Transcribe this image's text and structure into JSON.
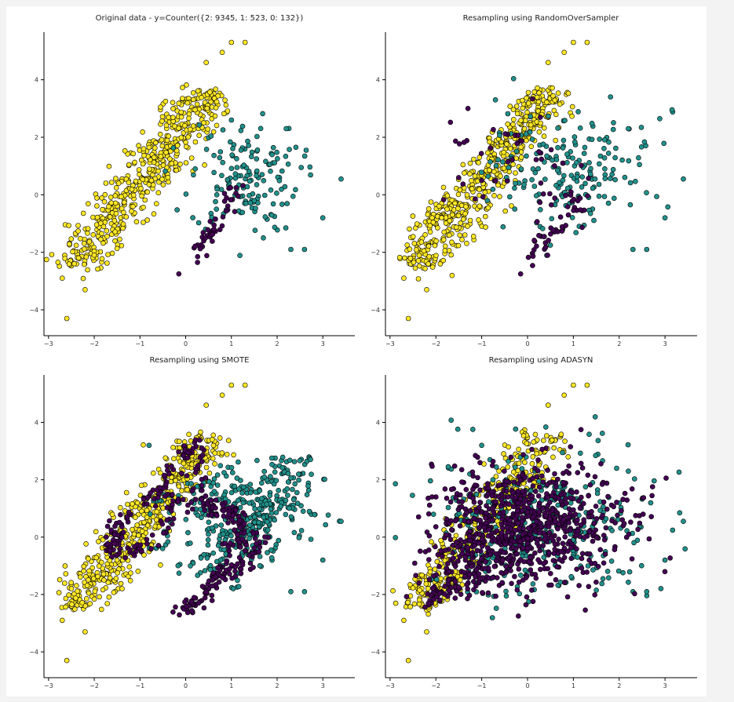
{
  "chart_data": [
    {
      "type": "scatter",
      "title": "Original data - y=Counter({2: 9345, 1: 523, 0: 132})",
      "xlim": [
        -3.1,
        3.7
      ],
      "ylim": [
        -4.9,
        5.6
      ],
      "xticks": [
        -3,
        -2,
        -1,
        0,
        1,
        2,
        3
      ],
      "yticks": [
        -4,
        -2,
        0,
        2,
        4
      ],
      "grid": false,
      "series": [
        {
          "class": 2,
          "color": "#fde725",
          "method": "band",
          "n": 520,
          "from": [
            -2.45,
            -2.5
          ],
          "to": [
            0.55,
            3.6
          ],
          "spread": 0.55,
          "extras": [
            [
              -2.6,
              -4.3
            ],
            [
              0.45,
              4.6
            ],
            [
              0.8,
              4.95
            ],
            [
              1.0,
              5.3
            ],
            [
              1.3,
              5.3
            ],
            [
              -0.55,
              3.05
            ],
            [
              -2.7,
              -2.9
            ],
            [
              -2.2,
              -3.3
            ]
          ]
        },
        {
          "class": 1,
          "color": "#21918c",
          "method": "blob",
          "n": 150,
          "center": [
            1.3,
            0.6
          ],
          "spread": [
            0.6,
            0.95
          ],
          "extras": [
            [
              3.4,
              0.55
            ],
            [
              2.6,
              -1.9
            ],
            [
              2.3,
              -1.9
            ],
            [
              3.0,
              -0.8
            ],
            [
              1.7,
              -1.5
            ],
            [
              2.2,
              2.3
            ],
            [
              1.0,
              2.6
            ]
          ]
        },
        {
          "class": 0,
          "color": "#440154",
          "method": "band",
          "n": 45,
          "from": [
            0.2,
            -2.2
          ],
          "to": [
            1.15,
            0.3
          ],
          "spread": 0.18,
          "extras": [
            [
              -0.15,
              -2.75
            ]
          ]
        }
      ]
    },
    {
      "type": "scatter",
      "title": "Resampling using RandomOverSampler",
      "xlim": [
        -3.1,
        3.7
      ],
      "ylim": [
        -4.9,
        5.6
      ],
      "xticks": [
        -3,
        -2,
        -1,
        0,
        1,
        2,
        3
      ],
      "yticks": [
        -4,
        -2,
        0,
        2,
        4
      ],
      "grid": false,
      "series": [
        {
          "class": 2,
          "color": "#fde725",
          "method": "band",
          "n": 520,
          "from": [
            -2.45,
            -2.5
          ],
          "to": [
            0.55,
            3.6
          ],
          "spread": 0.55,
          "extras": [
            [
              -2.6,
              -4.3
            ],
            [
              0.45,
              4.6
            ],
            [
              0.8,
              4.95
            ],
            [
              1.0,
              5.3
            ],
            [
              1.3,
              5.3
            ],
            [
              -2.7,
              -2.9
            ],
            [
              -2.2,
              -3.3
            ]
          ]
        },
        {
          "class": 1,
          "color": "#21918c",
          "method": "blob",
          "n": 190,
          "center": [
            0.9,
            0.9
          ],
          "spread": [
            0.9,
            1.0
          ],
          "extras": [
            [
              3.4,
              0.55
            ],
            [
              2.6,
              -1.9
            ],
            [
              2.3,
              -1.9
            ],
            [
              3.0,
              -0.8
            ],
            [
              2.2,
              2.3
            ],
            [
              -0.7,
              3.3
            ]
          ]
        },
        {
          "class": 0,
          "color": "#440154",
          "method": "mixed",
          "n": 90,
          "parts": [
            {
              "from": [
                0.2,
                -2.2
              ],
              "to": [
                1.15,
                0.3
              ],
              "spread": 0.18,
              "frac": 0.55
            },
            {
              "center": [
                -0.5,
                1.2
              ],
              "spread": [
                0.7,
                0.9
              ],
              "frac": 0.45
            }
          ],
          "extras": [
            [
              -0.15,
              -2.75
            ],
            [
              -1.3,
              3.0
            ]
          ]
        }
      ]
    },
    {
      "type": "scatter",
      "title": "Resampling using SMOTE",
      "xlim": [
        -3.1,
        3.7
      ],
      "ylim": [
        -4.9,
        5.6
      ],
      "xticks": [
        -3,
        -2,
        -1,
        0,
        1,
        2,
        3
      ],
      "yticks": [
        -4,
        -2,
        0,
        2,
        4
      ],
      "grid": false,
      "series": [
        {
          "class": 2,
          "color": "#fde725",
          "method": "band",
          "n": 470,
          "from": [
            -2.45,
            -2.5
          ],
          "to": [
            0.55,
            3.6
          ],
          "spread": 0.55,
          "extras": [
            [
              -2.6,
              -4.3
            ],
            [
              0.45,
              4.6
            ],
            [
              0.8,
              4.95
            ],
            [
              1.0,
              5.3
            ],
            [
              1.3,
              5.3
            ],
            [
              -2.7,
              -2.9
            ],
            [
              -2.2,
              -3.3
            ]
          ]
        },
        {
          "class": 1,
          "color": "#21918c",
          "method": "loops",
          "n": 420,
          "center": [
            1.1,
            0.6
          ],
          "spread": [
            1.3,
            1.2
          ],
          "extras": [
            [
              3.4,
              0.55
            ],
            [
              2.6,
              -1.9
            ],
            [
              2.3,
              -1.9
            ],
            [
              3.0,
              -0.8
            ],
            [
              -0.8,
              3.2
            ]
          ]
        },
        {
          "class": 0,
          "color": "#440154",
          "method": "path",
          "n": 360,
          "path": [
            [
              -0.15,
              -2.7
            ],
            [
              0.2,
              -2.3
            ],
            [
              0.6,
              -1.5
            ],
            [
              1.0,
              -0.7
            ],
            [
              1.3,
              0.2
            ],
            [
              1.1,
              0.9
            ],
            [
              0.6,
              0.9
            ],
            [
              0.3,
              1.4
            ],
            [
              0.2,
              2.5
            ],
            [
              0.25,
              3.4
            ],
            [
              -0.2,
              2.6
            ],
            [
              -0.6,
              1.6
            ],
            [
              -1.1,
              1.0
            ],
            [
              -1.6,
              0.2
            ],
            [
              -1.6,
              -0.4
            ],
            [
              -1.0,
              -0.5
            ],
            [
              -0.5,
              0.3
            ],
            [
              -0.2,
              1.3
            ],
            [
              0.4,
              1.1
            ],
            [
              1.2,
              0.5
            ],
            [
              1.6,
              -0.2
            ],
            [
              1.3,
              -1.0
            ],
            [
              0.7,
              -1.4
            ],
            [
              0.2,
              -2.3
            ]
          ],
          "spread": 0.12
        }
      ]
    },
    {
      "type": "scatter",
      "title": "Resampling using ADASYN",
      "xlim": [
        -3.1,
        3.7
      ],
      "ylim": [
        -4.9,
        5.6
      ],
      "xticks": [
        -3,
        -2,
        -1,
        0,
        1,
        2,
        3
      ],
      "yticks": [
        -4,
        -2,
        0,
        2,
        4
      ],
      "grid": false,
      "series": [
        {
          "class": 2,
          "color": "#fde725",
          "method": "band",
          "n": 380,
          "from": [
            -2.45,
            -2.5
          ],
          "to": [
            0.55,
            3.6
          ],
          "spread": 0.55,
          "extras": [
            [
              -2.6,
              -4.3
            ],
            [
              0.45,
              4.6
            ],
            [
              0.8,
              4.95
            ],
            [
              1.0,
              5.3
            ],
            [
              1.3,
              5.3
            ],
            [
              -2.7,
              -2.9
            ],
            [
              -2.2,
              -3.3
            ]
          ]
        },
        {
          "class": 1,
          "color": "#21918c",
          "method": "blob",
          "n": 330,
          "center": [
            0.3,
            0.5
          ],
          "spread": [
            1.2,
            1.3
          ],
          "extras": [
            [
              3.4,
              0.55
            ],
            [
              2.6,
              -1.9
            ],
            [
              2.3,
              -1.9
            ],
            [
              3.0,
              -0.8
            ],
            [
              2.2,
              2.3
            ],
            [
              -1.0,
              3.2
            ]
          ]
        },
        {
          "class": 0,
          "color": "#440154",
          "method": "fan",
          "n": 900,
          "apex": [
            -2.2,
            -2.4
          ],
          "center": [
            0.1,
            0.7
          ],
          "spread": [
            1.05,
            1.05
          ],
          "extras": [
            [
              -0.2,
              -2.75
            ]
          ]
        }
      ]
    }
  ]
}
